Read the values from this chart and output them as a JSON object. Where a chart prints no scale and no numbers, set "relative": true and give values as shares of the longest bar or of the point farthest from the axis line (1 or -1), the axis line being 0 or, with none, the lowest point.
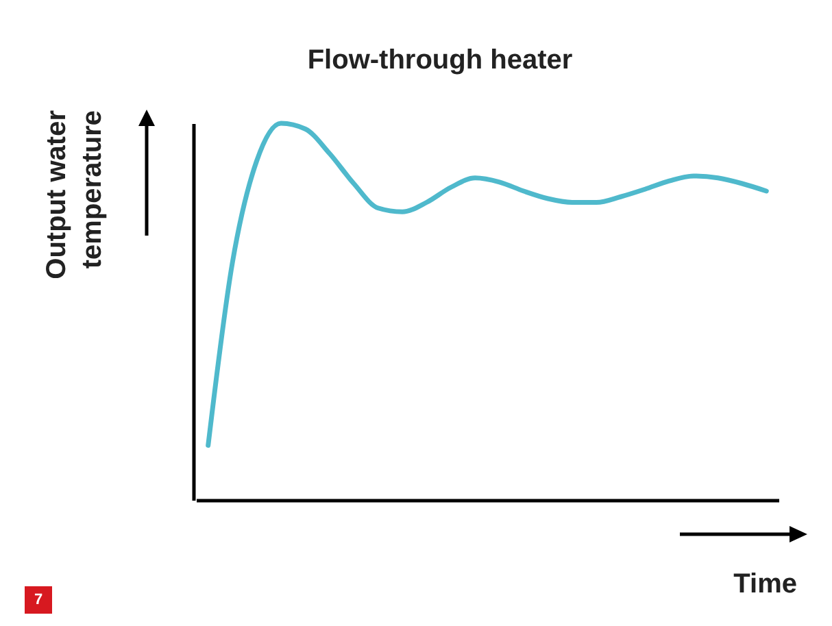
{
  "chart_data": {
    "type": "line",
    "title": "Flow-through heater",
    "xlabel": "Time",
    "ylabel": "Output water temperature",
    "relative": true,
    "grid": false,
    "marker": "none",
    "line_style": "solid",
    "annotations": [
      "7"
    ],
    "categories": [
      null,
      null,
      null,
      null,
      null,
      null,
      null,
      null,
      null,
      null,
      null,
      null,
      null,
      null,
      null,
      null,
      null,
      null,
      null,
      null,
      null,
      null,
      null,
      null
    ],
    "series": [
      {
        "color": "#4fb9cc",
        "values": [
          0.145,
          0.63,
          0.9,
          1,
          0.985,
          0.92,
          0.84,
          0.775,
          0.765,
          0.79,
          0.83,
          0.855,
          0.844,
          0.82,
          0.8,
          0.79,
          0.79,
          0.805,
          0.825,
          0.847,
          0.86,
          0.855,
          0.84,
          0.82
        ]
      }
    ]
  }
}
